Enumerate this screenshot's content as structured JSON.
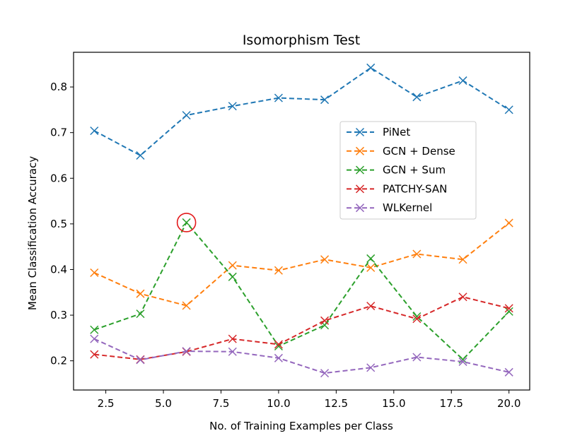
{
  "chart_data": {
    "type": "line",
    "title": "Isomorphism Test",
    "xlabel": "No. of Training Examples per Class",
    "ylabel": "Mean Classification Accuracy",
    "xlim": [
      1.1,
      20.9
    ],
    "ylim": [
      0.136,
      0.876
    ],
    "xticks": [
      2.5,
      5.0,
      7.5,
      10.0,
      12.5,
      15.0,
      17.5,
      20.0
    ],
    "xtick_labels": [
      "2.5",
      "5.0",
      "7.5",
      "10.0",
      "12.5",
      "15.0",
      "17.5",
      "20.0"
    ],
    "yticks": [
      0.2,
      0.3,
      0.4,
      0.5,
      0.6,
      0.7,
      0.8
    ],
    "ytick_labels": [
      "0.2",
      "0.3",
      "0.4",
      "0.5",
      "0.6",
      "0.7",
      "0.8"
    ],
    "x": [
      2,
      4,
      6,
      8,
      10,
      12,
      14,
      16,
      18,
      20
    ],
    "legend_position": "center-right",
    "series": [
      {
        "name": "PiNet",
        "color": "#1f77b4",
        "values": [
          0.704,
          0.65,
          0.738,
          0.758,
          0.776,
          0.772,
          0.842,
          0.778,
          0.814,
          0.75
        ]
      },
      {
        "name": "GCN + Dense",
        "color": "#ff7f0e",
        "values": [
          0.393,
          0.347,
          0.321,
          0.409,
          0.398,
          0.422,
          0.404,
          0.434,
          0.422,
          0.502
        ]
      },
      {
        "name": "GCN + Sum",
        "color": "#2ca02c",
        "values": [
          0.268,
          0.303,
          0.503,
          0.384,
          0.232,
          0.278,
          0.424,
          0.297,
          0.203,
          0.308
        ]
      },
      {
        "name": "PATCHY-SAN",
        "color": "#d62728",
        "values": [
          0.214,
          0.203,
          0.22,
          0.248,
          0.236,
          0.288,
          0.32,
          0.292,
          0.34,
          0.315
        ]
      },
      {
        "name": "WLKernel",
        "color": "#9467bd",
        "values": [
          0.248,
          0.202,
          0.221,
          0.22,
          0.206,
          0.173,
          0.185,
          0.208,
          0.198,
          0.175
        ]
      }
    ],
    "annotations": [
      {
        "type": "circle-highlight",
        "series": "GCN + Sum",
        "x": 6,
        "y": 0.503,
        "color": "#e31a1c"
      }
    ]
  }
}
